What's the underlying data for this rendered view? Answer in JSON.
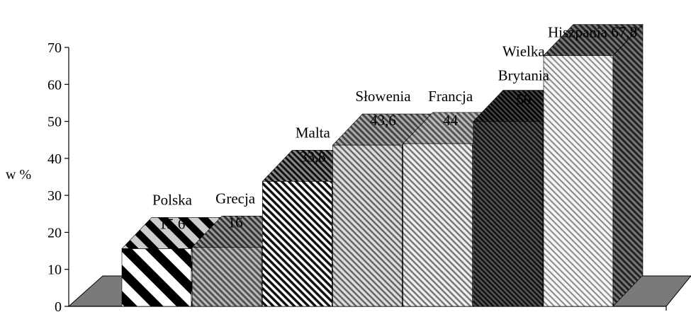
{
  "chart_data": {
    "type": "bar",
    "ylabel": "w %",
    "ylim": [
      0,
      70
    ],
    "yticks": [
      "0",
      "10",
      "20",
      "30",
      "40",
      "50",
      "60",
      "70"
    ],
    "categories": [
      "Polska",
      "Grecja",
      "Malta",
      "Słowenia",
      "Francja",
      "Wielka Brytania",
      "Hiszpania"
    ],
    "values": [
      15.6,
      16,
      33.8,
      43.6,
      44,
      50,
      67.8
    ],
    "label_lines": [
      [
        "Polska",
        "15,6"
      ],
      [
        "Grecja",
        "16"
      ],
      [
        "Malta",
        "33,8"
      ],
      [
        "Słowenia",
        "43,6"
      ],
      [
        "Francja",
        "44"
      ],
      [
        "Wielka",
        "Brytania",
        "50"
      ],
      [
        "Hiszpania 67,8"
      ]
    ],
    "style": "3d-hatched",
    "grid": false,
    "legend": "none"
  }
}
